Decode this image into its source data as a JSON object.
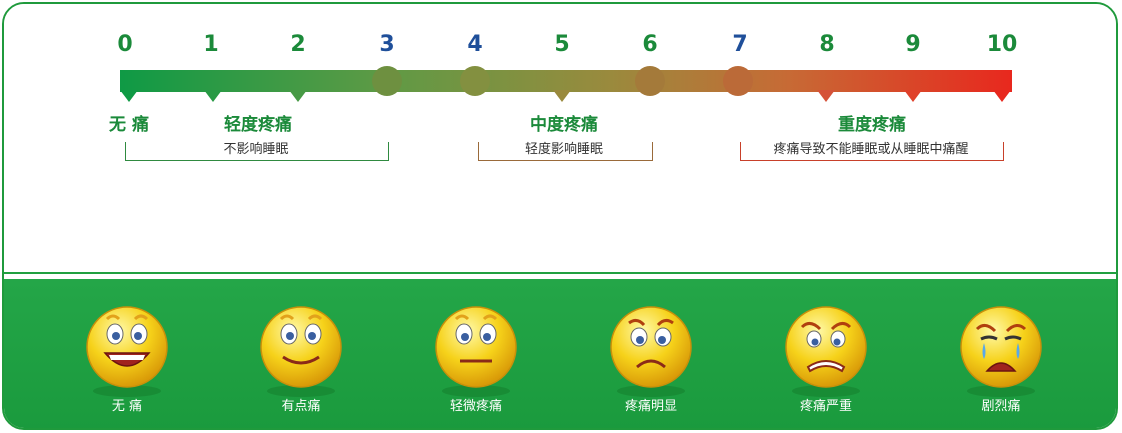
{
  "scale": {
    "numbers": [
      "0",
      "1",
      "2",
      "3",
      "4",
      "5",
      "6",
      "7",
      "8",
      "9",
      "10"
    ],
    "colors": {
      "low": "#1b8a3a",
      "mid": "#1f4f9a",
      "high": "#1b8a3a"
    }
  },
  "levels": {
    "none": "无 痛",
    "mild": "轻度疼痛",
    "moderate": "中度疼痛",
    "severe": "重度疼痛"
  },
  "brackets": {
    "mild": "不影响睡眠",
    "moderate": "轻度影响睡眠",
    "severe": "疼痛导致不能睡眠或从睡眠中痛醒"
  },
  "faces": [
    {
      "label": "无  痛",
      "icon": "laughing-face-icon"
    },
    {
      "label": "有点痛",
      "icon": "smiling-face-icon"
    },
    {
      "label": "轻微疼痛",
      "icon": "neutral-face-icon"
    },
    {
      "label": "疼痛明显",
      "icon": "frowning-face-icon"
    },
    {
      "label": "疼痛严重",
      "icon": "grimacing-face-icon"
    },
    {
      "label": "剧烈痛",
      "icon": "crying-face-icon"
    }
  ]
}
